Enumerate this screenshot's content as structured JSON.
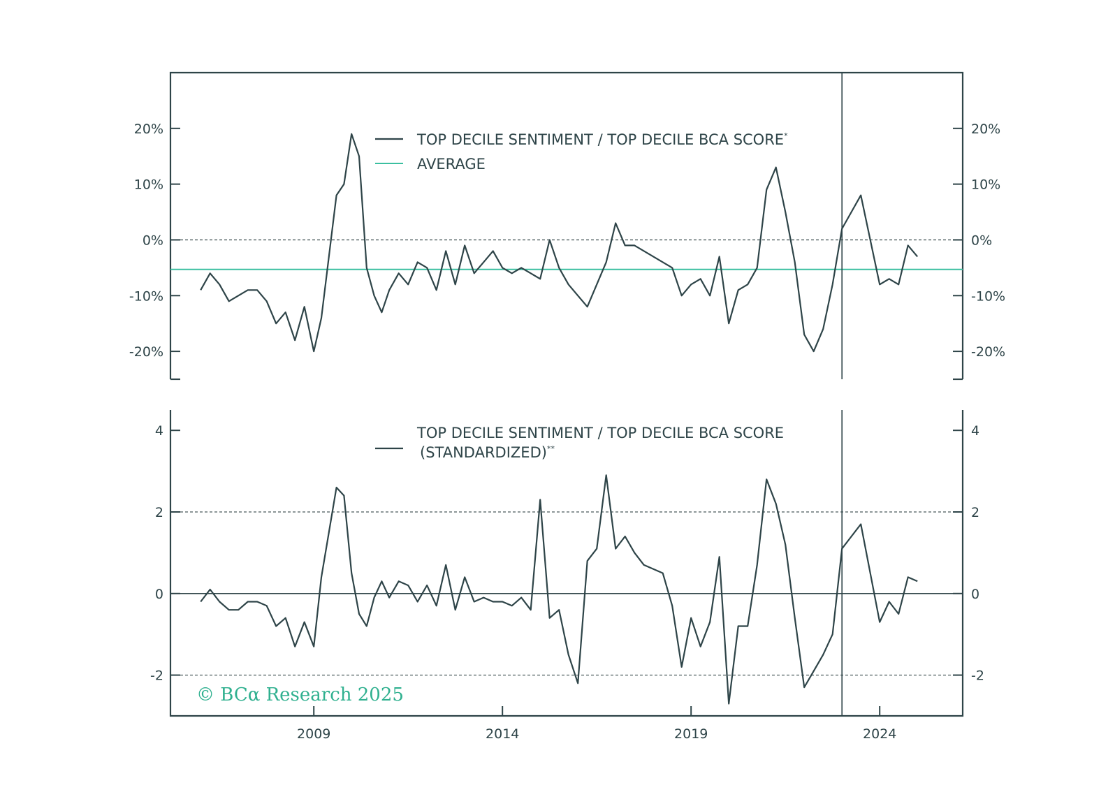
{
  "colors": {
    "frame": "#2e4448",
    "series": "#2e4448",
    "average": "#3bbfa0",
    "brand": "#2fb08f",
    "dashed": "#4a5a5c"
  },
  "watermark": "© BCα Research 2025",
  "chart_data": [
    {
      "type": "line",
      "panel": "top",
      "title": "",
      "ylim": [
        -25,
        30
      ],
      "y_ticks": [
        20,
        10,
        0,
        -10,
        -20
      ],
      "y_tick_labels": [
        "20%",
        "10%",
        "0%",
        "-10%",
        "-20%"
      ],
      "reference_lines": [
        {
          "y": 0,
          "style": "dashed"
        }
      ],
      "average": -5.3,
      "legend": {
        "placement": "top-center",
        "entries": [
          {
            "label": "TOP DECILE SENTIMENT / TOP DECILE BCA SCORE",
            "suffix": "*",
            "kind": "series"
          },
          {
            "label": "AVERAGE",
            "kind": "average"
          }
        ]
      },
      "series": [
        {
          "x": [
            2006.0,
            2006.25,
            2006.5,
            2006.75,
            2007.0,
            2007.25,
            2007.5,
            2007.75,
            2008.0,
            2008.25,
            2008.5,
            2008.75,
            2009.0,
            2009.2,
            2009.4,
            2009.6,
            2009.8,
            2010.0,
            2010.2,
            2010.4,
            2010.6,
            2010.8,
            2011.0,
            2011.25,
            2011.5,
            2011.75,
            2012.0,
            2012.25,
            2012.5,
            2012.75,
            2013.0,
            2013.25,
            2013.5,
            2013.75,
            2014.0,
            2014.25,
            2014.5,
            2014.75,
            2015.0,
            2015.25,
            2015.5,
            2015.75,
            2016.0,
            2016.25,
            2016.5,
            2016.75,
            2017.0,
            2017.25,
            2017.5,
            2017.75,
            2018.0,
            2018.25,
            2018.5,
            2018.75,
            2019.0,
            2019.25,
            2019.5,
            2019.75,
            2020.0,
            2020.25,
            2020.5,
            2020.75,
            2021.0,
            2021.25,
            2021.5,
            2021.75,
            2022.0,
            2022.25,
            2022.5,
            2022.75,
            2023.0,
            2023.25,
            2023.5,
            2023.75,
            2024.0,
            2024.25,
            2024.5,
            2024.75,
            2025.0
          ],
          "y": [
            -9,
            -6,
            -8,
            -11,
            -10,
            -9,
            -9,
            -11,
            -15,
            -13,
            -18,
            -12,
            -20,
            -14,
            -3,
            8,
            10,
            19,
            15,
            -5,
            -10,
            -13,
            -9,
            -6,
            -8,
            -4,
            -5,
            -9,
            -2,
            -8,
            -1,
            -6,
            -4,
            -2,
            -5,
            -6,
            -5,
            -6,
            -7,
            0,
            -5,
            -8,
            -10,
            -12,
            -8,
            -4,
            3,
            -1,
            -1,
            -2,
            -3,
            -4,
            -5,
            -10,
            -8,
            -7,
            -10,
            -3,
            -15,
            -9,
            -8,
            -5,
            9,
            13,
            5,
            -4,
            -17,
            -20,
            -16,
            -8,
            2,
            5,
            8,
            0,
            -8,
            -7,
            -8,
            -1,
            -3
          ]
        }
      ]
    },
    {
      "type": "line",
      "panel": "bottom",
      "title": "",
      "ylim": [
        -3,
        4.5
      ],
      "y_ticks": [
        4,
        2,
        0,
        -2
      ],
      "y_tick_labels": [
        "4",
        "2",
        "0",
        "-2"
      ],
      "reference_lines": [
        {
          "y": 2,
          "style": "dashed"
        },
        {
          "y": 0,
          "style": "solid"
        },
        {
          "y": -2,
          "style": "dashed"
        }
      ],
      "legend": {
        "placement": "top-center",
        "entries": [
          {
            "label": "TOP DECILE SENTIMENT / TOP DECILE BCA SCORE",
            "line2": "(STANDARDIZED)",
            "suffix": "**",
            "kind": "series"
          }
        ]
      },
      "series": [
        {
          "x": [
            2006.0,
            2006.25,
            2006.5,
            2006.75,
            2007.0,
            2007.25,
            2007.5,
            2007.75,
            2008.0,
            2008.25,
            2008.5,
            2008.75,
            2009.0,
            2009.2,
            2009.4,
            2009.6,
            2009.8,
            2010.0,
            2010.2,
            2010.4,
            2010.6,
            2010.8,
            2011.0,
            2011.25,
            2011.5,
            2011.75,
            2012.0,
            2012.25,
            2012.5,
            2012.75,
            2013.0,
            2013.25,
            2013.5,
            2013.75,
            2014.0,
            2014.25,
            2014.5,
            2014.75,
            2015.0,
            2015.25,
            2015.5,
            2015.75,
            2016.0,
            2016.25,
            2016.5,
            2016.75,
            2017.0,
            2017.25,
            2017.5,
            2017.75,
            2018.0,
            2018.25,
            2018.5,
            2018.75,
            2019.0,
            2019.25,
            2019.5,
            2019.75,
            2020.0,
            2020.25,
            2020.5,
            2020.75,
            2021.0,
            2021.25,
            2021.5,
            2021.75,
            2022.0,
            2022.25,
            2022.5,
            2022.75,
            2023.0,
            2023.25,
            2023.5,
            2023.75,
            2024.0,
            2024.25,
            2024.5,
            2024.75,
            2025.0
          ],
          "y": [
            -0.2,
            0.1,
            -0.2,
            -0.4,
            -0.4,
            -0.2,
            -0.2,
            -0.3,
            -0.8,
            -0.6,
            -1.3,
            -0.7,
            -1.3,
            0.4,
            1.5,
            2.6,
            2.4,
            0.5,
            -0.5,
            -0.8,
            -0.1,
            0.3,
            -0.1,
            0.3,
            0.2,
            -0.2,
            0.2,
            -0.3,
            0.7,
            -0.4,
            0.4,
            -0.2,
            -0.1,
            -0.2,
            -0.2,
            -0.3,
            -0.1,
            -0.4,
            2.3,
            -0.6,
            -0.4,
            -1.5,
            -2.2,
            0.8,
            1.1,
            2.9,
            1.1,
            1.4,
            1.0,
            0.7,
            0.6,
            0.5,
            -0.3,
            -1.8,
            -0.6,
            -1.3,
            -0.7,
            0.9,
            -2.7,
            -0.8,
            -0.8,
            0.7,
            2.8,
            2.2,
            1.2,
            -0.6,
            -2.3,
            -1.9,
            -1.5,
            -1.0,
            1.1,
            1.4,
            1.7,
            0.5,
            -0.7,
            -0.2,
            -0.5,
            0.4,
            0.3
          ]
        }
      ]
    }
  ],
  "x_axis": {
    "ticks": [
      2009,
      2014,
      2019,
      2024
    ],
    "tick_labels": [
      "2009",
      "2014",
      "2019",
      "2024"
    ]
  },
  "vertical_marker": {
    "x": 2023.0
  }
}
